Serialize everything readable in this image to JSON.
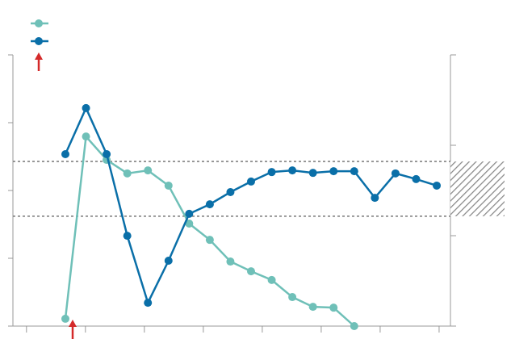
{
  "chart_data": {
    "type": "line",
    "x": [
      0.66,
      1.01,
      1.36,
      1.71,
      2.06,
      2.41,
      2.76,
      3.11,
      3.46,
      3.81,
      4.16,
      4.51,
      4.86,
      5.21,
      5.56,
      5.91,
      6.26,
      6.61,
      6.96
    ],
    "series": [
      {
        "color": "#6fc0b8",
        "values": [
          2.7,
          69.9,
          61.3,
          56.3,
          57.4,
          51.8,
          37.8,
          31.8,
          23.8,
          20.2,
          17.0,
          10.7,
          7.1,
          6.8,
          0,
          null,
          null,
          null,
          null
        ]
      },
      {
        "color": "#0a6fa8",
        "values": [
          63.4,
          80.4,
          63.4,
          33.3,
          8.6,
          24.1,
          41.4,
          44.9,
          49.4,
          53.3,
          56.8,
          57.4,
          56.5,
          57.1,
          57.1,
          47.3,
          56.3,
          54.2,
          51.8
        ]
      }
    ],
    "xlim": [
      -0.23,
      7.22
    ],
    "xticks": [
      0,
      1,
      2,
      3,
      4,
      5,
      6,
      7
    ],
    "ylim": [
      0,
      100
    ],
    "yticks": [
      0,
      25,
      50,
      75,
      100
    ],
    "y2lim": [
      0,
      3
    ],
    "y2ticks": [
      0,
      1,
      2,
      3
    ],
    "reference_band": [
      40.5,
      60.7
    ]
  }
}
